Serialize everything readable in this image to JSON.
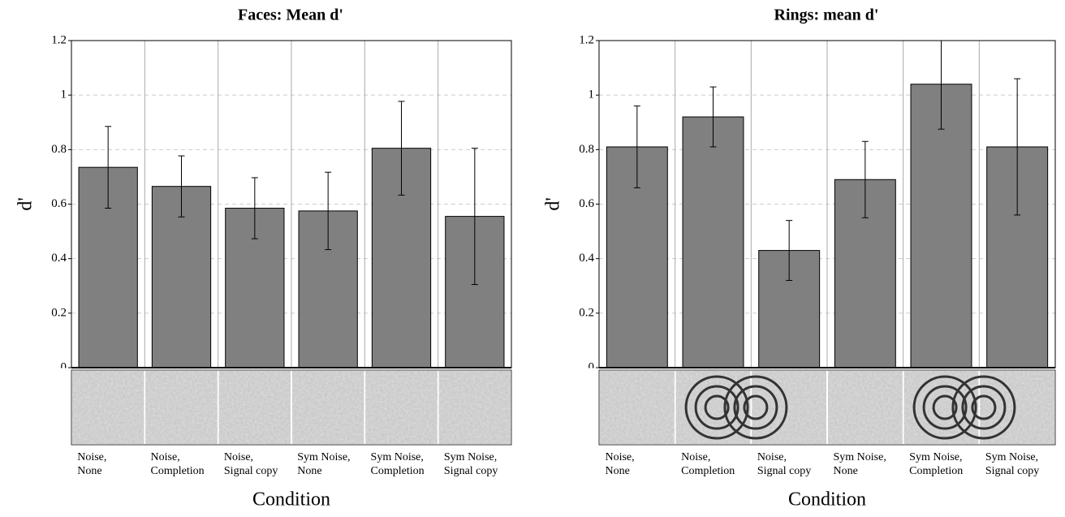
{
  "chart_data": [
    {
      "type": "bar",
      "title": "Faces:  Mean d'",
      "ylabel": "d'",
      "xlabel": "Condition",
      "categories": [
        [
          "Noise,",
          "None"
        ],
        [
          "Noise,",
          "Completion"
        ],
        [
          "Noise,",
          "Signal copy"
        ],
        [
          "Sym Noise,",
          "None"
        ],
        [
          "Sym Noise,",
          "Completion"
        ],
        [
          "Sym Noise,",
          "Signal copy"
        ]
      ],
      "values": [
        0.735,
        0.665,
        0.585,
        0.575,
        0.805,
        0.555
      ],
      "errors": [
        0.15,
        0.112,
        0.112,
        0.142,
        0.172,
        0.25
      ],
      "color": "#808080",
      "ylim": [
        0,
        1.2
      ],
      "yticks": [
        0,
        0.2,
        0.4,
        0.6,
        0.8,
        1,
        1.2
      ],
      "grid": true
    },
    {
      "type": "bar",
      "title": "Rings:  mean d'",
      "ylabel": "d'",
      "xlabel": "Condition",
      "categories": [
        [
          "Noise,",
          "None"
        ],
        [
          "Noise,",
          "Completion"
        ],
        [
          "Noise,",
          "Signal copy"
        ],
        [
          "Sym Noise,",
          "None"
        ],
        [
          "Sym Noise,",
          "Completion"
        ],
        [
          "Sym Noise,",
          "Signal copy"
        ]
      ],
      "values": [
        0.81,
        0.92,
        0.43,
        0.69,
        1.04,
        0.81
      ],
      "errors": [
        0.15,
        0.11,
        0.11,
        0.14,
        0.165,
        0.25
      ],
      "color": "#808080",
      "ylim": [
        0,
        1.2
      ],
      "yticks": [
        0,
        0.2,
        0.4,
        0.6,
        0.8,
        1,
        1.2
      ],
      "grid": true
    }
  ]
}
